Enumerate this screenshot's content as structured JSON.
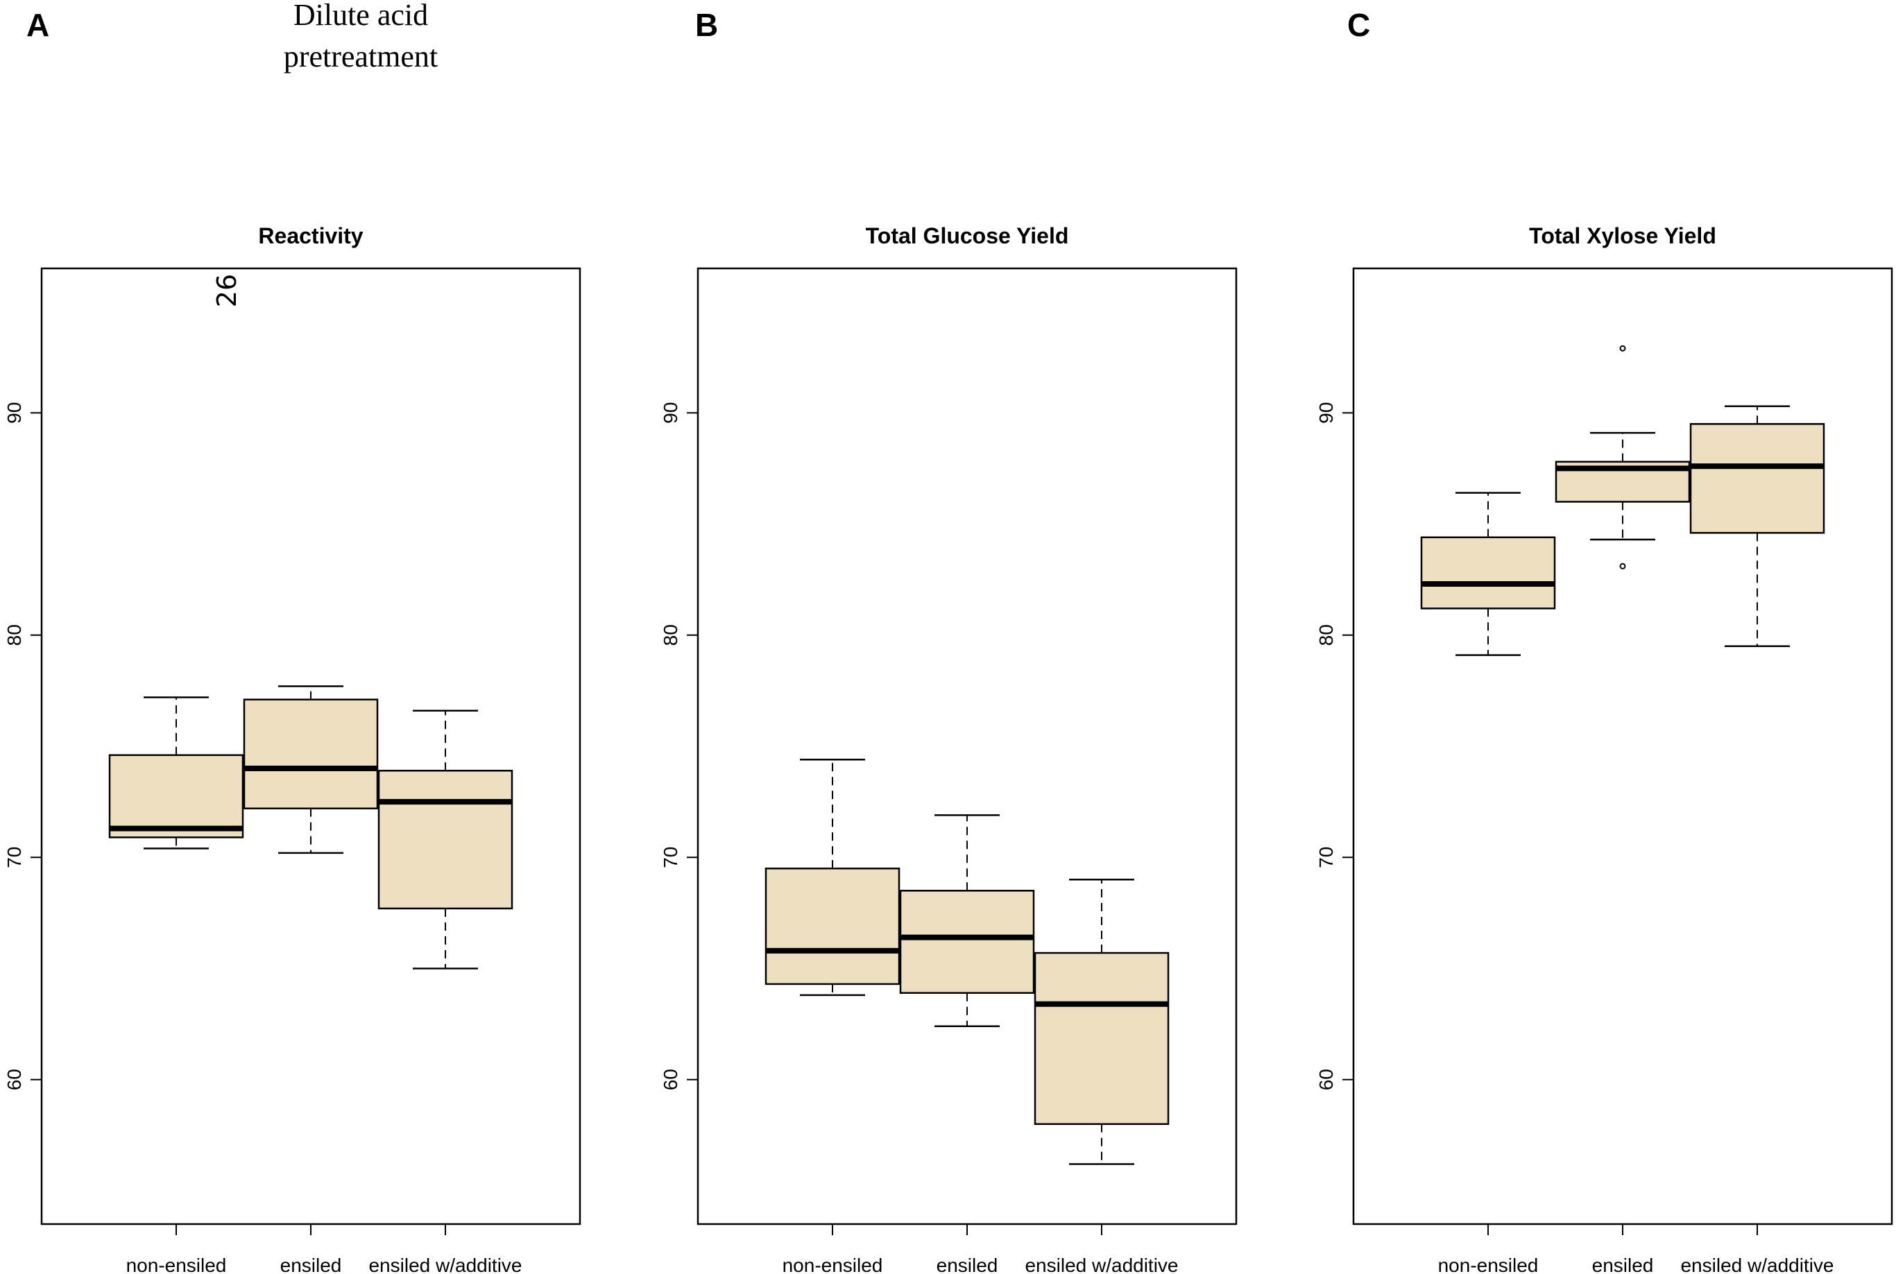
{
  "figure": {
    "super_title_lines": [
      "Dilute acid",
      "pretreatment"
    ],
    "box_fill": "#EDDFC0",
    "line_color": "#000000"
  },
  "chart_data": [
    {
      "type": "boxplot",
      "panel_label": "A",
      "title": "Reactivity",
      "xlabel": "",
      "ylabel": "",
      "ylim": [
        53.5,
        96.5
      ],
      "yticks": [
        60,
        70,
        80,
        90
      ],
      "ytick_labels": [
        "60",
        "70",
        "80",
        "90"
      ],
      "categories": [
        "non-ensiled",
        "ensiled",
        "ensiled w/additive"
      ],
      "boxes": [
        {
          "whisker_low": 70.4,
          "q1": 70.9,
          "median": 71.3,
          "q3": 74.6,
          "whisker_high": 77.2,
          "outliers": []
        },
        {
          "whisker_low": 70.2,
          "q1": 72.2,
          "median": 74.0,
          "q3": 77.1,
          "whisker_high": 77.7,
          "outliers": []
        },
        {
          "whisker_low": 65.0,
          "q1": 67.7,
          "median": 72.5,
          "q3": 73.9,
          "whisker_high": 76.6,
          "outliers": []
        }
      ],
      "annotations": [
        {
          "text": "26",
          "category": "non-ensiled",
          "y": 95.5,
          "rotated": true
        }
      ]
    },
    {
      "type": "boxplot",
      "panel_label": "B",
      "title": "Total Glucose Yield",
      "xlabel": "",
      "ylabel": "",
      "ylim": [
        53.5,
        96.5
      ],
      "yticks": [
        60,
        70,
        80,
        90
      ],
      "ytick_labels": [
        "60",
        "70",
        "80",
        "90"
      ],
      "categories": [
        "non-ensiled",
        "ensiled",
        "ensiled w/additive"
      ],
      "boxes": [
        {
          "whisker_low": 63.8,
          "q1": 64.3,
          "median": 65.8,
          "q3": 69.5,
          "whisker_high": 74.4,
          "outliers": []
        },
        {
          "whisker_low": 62.4,
          "q1": 63.9,
          "median": 66.4,
          "q3": 68.5,
          "whisker_high": 71.9,
          "outliers": []
        },
        {
          "whisker_low": 56.2,
          "q1": 58.0,
          "median": 63.4,
          "q3": 65.7,
          "whisker_high": 69.0,
          "outliers": []
        }
      ],
      "annotations": []
    },
    {
      "type": "boxplot",
      "panel_label": "C",
      "title": "Total Xylose Yield",
      "xlabel": "",
      "ylabel": "",
      "ylim": [
        53.5,
        96.5
      ],
      "yticks": [
        60,
        70,
        80,
        90
      ],
      "ytick_labels": [
        "60",
        "70",
        "80",
        "90"
      ],
      "categories": [
        "non-ensiled",
        "ensiled",
        "ensiled w/additive"
      ],
      "boxes": [
        {
          "whisker_low": 79.1,
          "q1": 81.2,
          "median": 82.3,
          "q3": 84.4,
          "whisker_high": 86.4,
          "outliers": []
        },
        {
          "whisker_low": 84.3,
          "q1": 86.0,
          "median": 87.5,
          "q3": 87.8,
          "whisker_high": 89.1,
          "outliers": [
            92.9,
            83.1
          ]
        },
        {
          "whisker_low": 79.5,
          "q1": 84.6,
          "median": 87.6,
          "q3": 89.5,
          "whisker_high": 90.3,
          "outliers": []
        }
      ],
      "annotations": []
    }
  ]
}
